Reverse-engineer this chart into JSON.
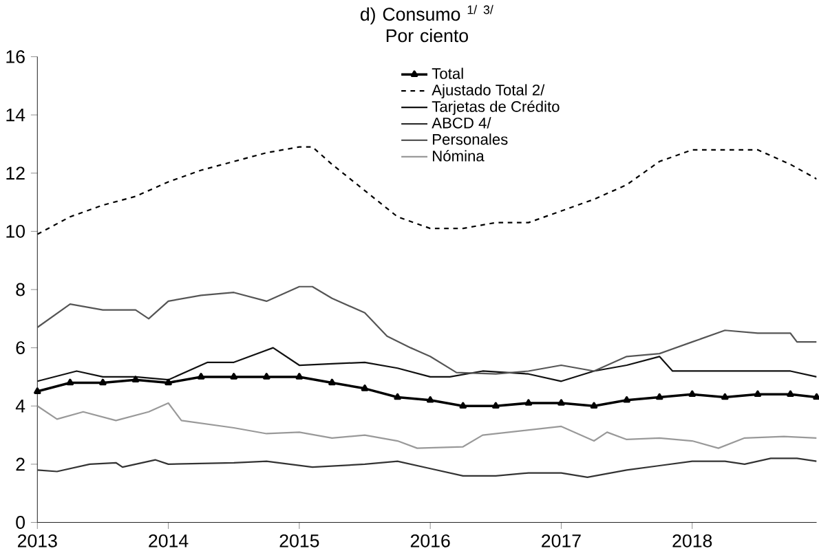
{
  "chart_data": {
    "type": "line",
    "title": "d) Consumo $^{1/ 3/}$",
    "subtitle": "Por ciento",
    "legend": "top right",
    "grid": false,
    "xlim": [
      2013,
      2018.95
    ],
    "xticks": [
      2013,
      2014,
      2015,
      2016,
      2017,
      2018
    ],
    "ylim": [
      0,
      16
    ],
    "yticks": [
      0,
      2,
      4,
      6,
      8,
      10,
      12,
      14,
      16
    ],
    "series": [
      {
        "name": "Total",
        "color": "#000000",
        "marker": "triangle",
        "line_style": "solid",
        "x": [
          2013,
          2013.25,
          2013.5,
          2013.75,
          2014,
          2014.25,
          2014.5,
          2014.75,
          2015,
          2015.25,
          2015.5,
          2015.75,
          2016,
          2016.25,
          2016.5,
          2016.75,
          2017,
          2017.25,
          2017.5,
          2017.75,
          2018,
          2018.25,
          2018.5,
          2018.75,
          2018.95
        ],
        "values": [
          4.5,
          4.8,
          4.8,
          4.9,
          4.8,
          5.0,
          5.0,
          5.0,
          5.0,
          4.8,
          4.6,
          4.3,
          4.2,
          4.0,
          4.0,
          4.1,
          4.1,
          4.0,
          4.2,
          4.3,
          4.4,
          4.3,
          4.4,
          4.4,
          4.3
        ]
      },
      {
        "name": "Ajustado Total 2/",
        "color": "#000000",
        "marker": "none",
        "line_style": "dashed",
        "x": [
          2013,
          2013.25,
          2013.5,
          2013.75,
          2014,
          2014.25,
          2014.5,
          2014.75,
          2015,
          2015.1,
          2015.25,
          2015.5,
          2015.75,
          2016,
          2016.25,
          2016.5,
          2016.75,
          2017,
          2017.25,
          2017.5,
          2017.75,
          2018,
          2018.25,
          2018.5,
          2018.75,
          2018.95
        ],
        "values": [
          9.9,
          10.5,
          10.9,
          11.2,
          11.7,
          12.1,
          12.4,
          12.7,
          12.9,
          12.9,
          12.3,
          11.4,
          10.5,
          10.1,
          10.1,
          10.3,
          10.3,
          10.7,
          11.1,
          11.6,
          12.4,
          12.8,
          12.8,
          12.8,
          12.3,
          11.8
        ]
      },
      {
        "name": "Tarjetas de Crédito",
        "color": "#111111",
        "marker": "none",
        "line_style": "solid",
        "x": [
          2013,
          2013.3,
          2013.5,
          2013.75,
          2014,
          2014.3,
          2014.5,
          2014.8,
          2015,
          2015.25,
          2015.5,
          2015.75,
          2016,
          2016.15,
          2016.4,
          2016.75,
          2017,
          2017.25,
          2017.5,
          2017.75,
          2017.85,
          2018,
          2018.25,
          2018.5,
          2018.75,
          2018.95
        ],
        "values": [
          4.85,
          5.2,
          5.0,
          5.0,
          4.9,
          5.5,
          5.5,
          6.0,
          5.4,
          5.45,
          5.5,
          5.3,
          5.0,
          5.0,
          5.2,
          5.1,
          4.85,
          5.2,
          5.4,
          5.7,
          5.2,
          5.2,
          5.2,
          5.2,
          5.2,
          5.0
        ]
      },
      {
        "name": "ABCD 4/",
        "color": "#333333",
        "marker": "none",
        "line_style": "solid",
        "x": [
          2013,
          2013.15,
          2013.4,
          2013.6,
          2013.65,
          2013.9,
          2014,
          2014.5,
          2014.75,
          2015.1,
          2015.5,
          2015.75,
          2016,
          2016.25,
          2016.5,
          2016.75,
          2017,
          2017.2,
          2017.5,
          2017.75,
          2018,
          2018.25,
          2018.4,
          2018.6,
          2018.8,
          2018.95
        ],
        "values": [
          1.8,
          1.75,
          2.0,
          2.05,
          1.9,
          2.15,
          2.0,
          2.05,
          2.1,
          1.9,
          2.0,
          2.1,
          1.85,
          1.6,
          1.6,
          1.7,
          1.7,
          1.55,
          1.8,
          1.95,
          2.1,
          2.1,
          2.0,
          2.2,
          2.2,
          2.1
        ]
      },
      {
        "name": "Personales",
        "color": "#555555",
        "marker": "none",
        "line_style": "solid",
        "x": [
          2013,
          2013.25,
          2013.5,
          2013.75,
          2013.85,
          2014,
          2014.25,
          2014.5,
          2014.75,
          2015,
          2015.1,
          2015.25,
          2015.5,
          2015.67,
          2015.85,
          2016,
          2016.2,
          2016.5,
          2016.75,
          2017,
          2017.25,
          2017.5,
          2017.75,
          2018,
          2018.25,
          2018.5,
          2018.75,
          2018.8,
          2018.95
        ],
        "values": [
          6.7,
          7.5,
          7.3,
          7.3,
          7.0,
          7.6,
          7.8,
          7.9,
          7.6,
          8.1,
          8.1,
          7.7,
          7.2,
          6.4,
          6.0,
          5.7,
          5.15,
          5.1,
          5.2,
          5.4,
          5.2,
          5.7,
          5.8,
          6.2,
          6.6,
          6.5,
          6.5,
          6.2,
          6.2
        ]
      },
      {
        "name": "Nómina",
        "color": "#999999",
        "marker": "none",
        "line_style": "solid",
        "x": [
          2013,
          2013.15,
          2013.35,
          2013.6,
          2013.85,
          2014,
          2014.1,
          2014.5,
          2014.75,
          2015,
          2015.25,
          2015.5,
          2015.75,
          2015.9,
          2016.25,
          2016.4,
          2017,
          2017.25,
          2017.35,
          2017.5,
          2017.75,
          2018,
          2018.2,
          2018.4,
          2018.7,
          2018.95
        ],
        "values": [
          4.0,
          3.55,
          3.8,
          3.5,
          3.8,
          4.1,
          3.5,
          3.25,
          3.05,
          3.1,
          2.9,
          3.0,
          2.8,
          2.55,
          2.6,
          3.0,
          3.3,
          2.8,
          3.1,
          2.85,
          2.9,
          2.8,
          2.55,
          2.9,
          2.95,
          2.9
        ]
      }
    ]
  }
}
